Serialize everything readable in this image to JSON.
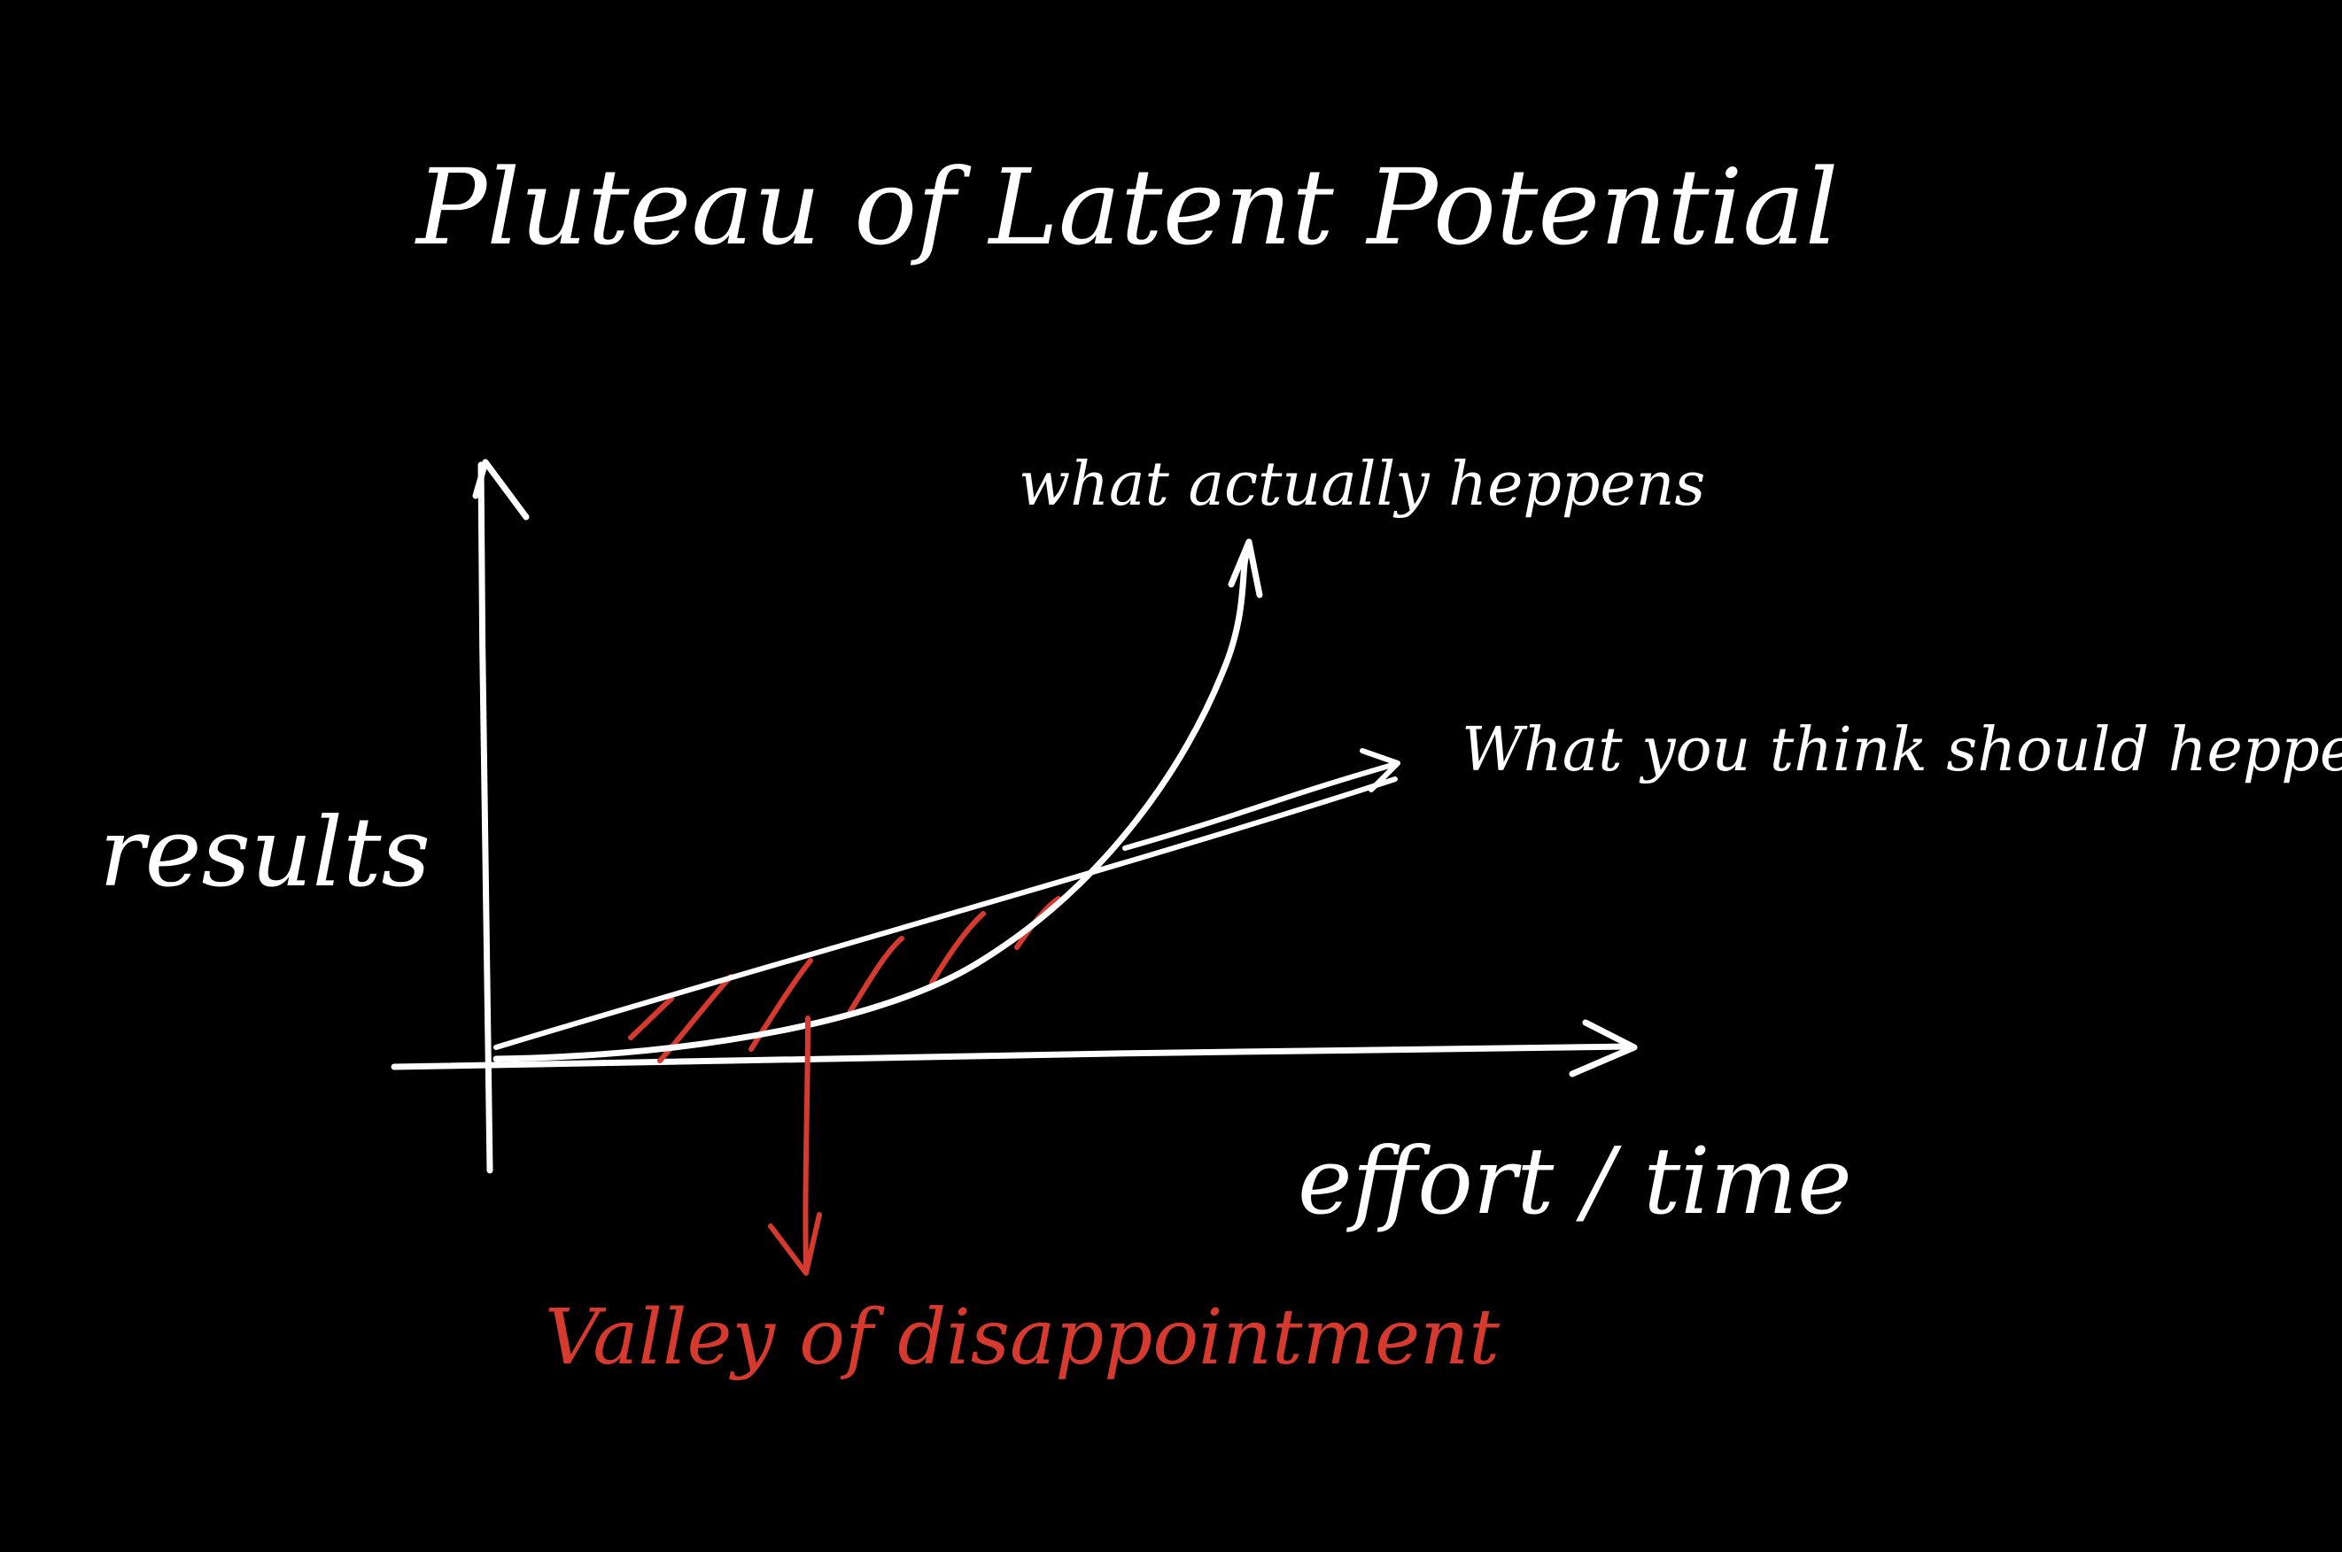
{
  "title": "Pluteau of Latent Potential",
  "axes": {
    "ylabel": "results",
    "xlabel": "effort / time"
  },
  "annotations": {
    "actual": "what actually heppens",
    "expected": "What you think should heppen",
    "valley": "Valley of disappointment"
  },
  "colors": {
    "background": "#000000",
    "ink": "#ffffff",
    "accent": "#d63a2f"
  }
}
